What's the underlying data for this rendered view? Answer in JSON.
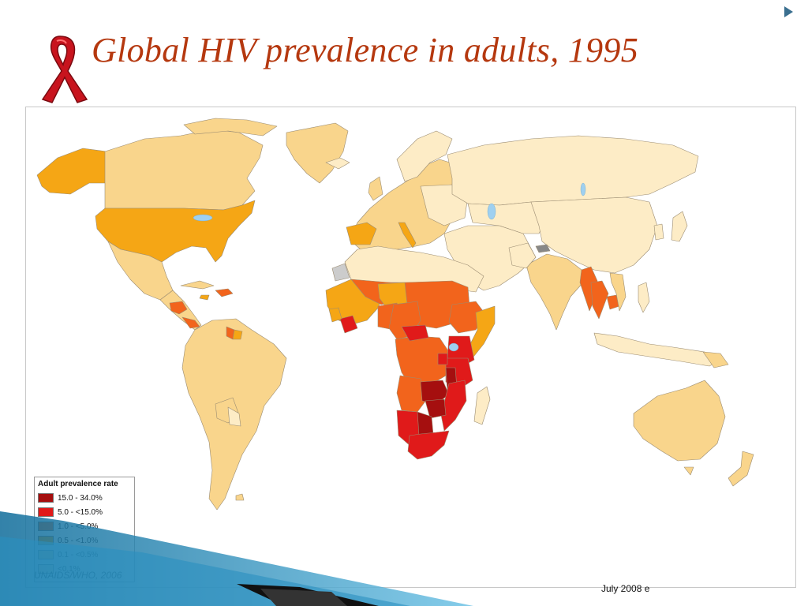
{
  "slide": {
    "title": "Global HIV prevalence in adults, 1995",
    "footer_date": "July 2008",
    "footer_suffix": "e"
  },
  "map": {
    "source": "UNAIDS/WHO, 2006",
    "ocean_color": "#ffffff",
    "border_color": "#9b8c72",
    "legend": {
      "title": "Adult prevalence rate",
      "items": [
        {
          "label": "15.0 - 34.0%",
          "color": "#a50f0f"
        },
        {
          "label": "5.0 - <15.0%",
          "color": "#e01a1a"
        },
        {
          "label": "1.0 - <5.0%",
          "color": "#f2641c"
        },
        {
          "label": "0.5 - <1.0%",
          "color": "#f5a615"
        },
        {
          "label": "0.1 - <0.5%",
          "color": "#f9d58c"
        },
        {
          "label": "<0.1%",
          "color": "#fdecc6"
        }
      ]
    }
  }
}
